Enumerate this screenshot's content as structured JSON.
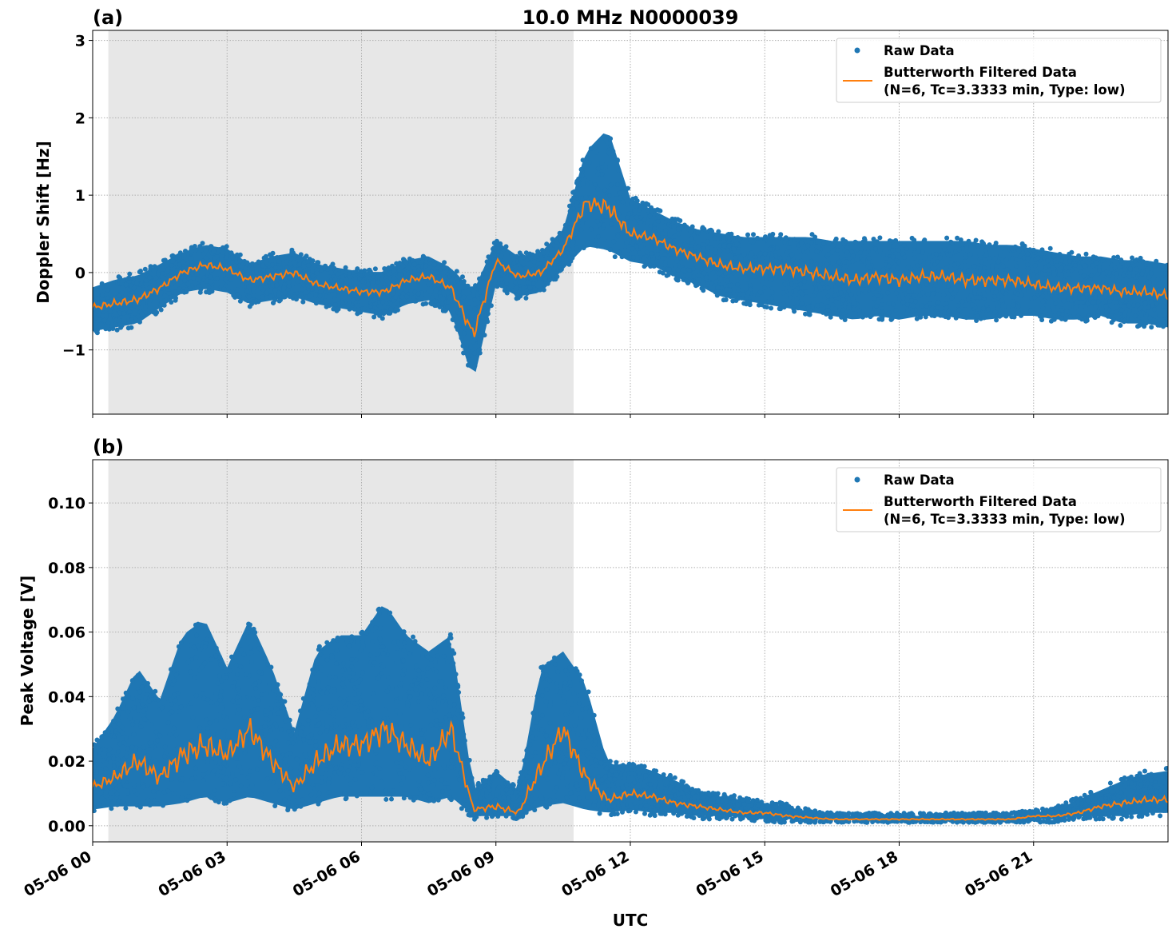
{
  "chart_data": [
    {
      "type": "scatter+line",
      "panel_label": "(a)",
      "title": "10.0 MHz N0000039",
      "xlabel": "",
      "ylabel": "Doppler Shift [Hz]",
      "xlim": [
        "05-06 00:00",
        "05-07 00:00"
      ],
      "ylim": [
        -1.83,
        3.13
      ],
      "yticks": [
        -1,
        0,
        1,
        2,
        3
      ],
      "ytick_labels": [
        "−1",
        "0",
        "1",
        "2",
        "3"
      ],
      "grid": true,
      "legend_placement": "top-right",
      "shaded_span": [
        "05-06 00:21",
        "05-06 10:44"
      ],
      "legend": [
        "Raw Data",
        "Butterworth Filtered Data",
        "(N=6, Tc=3.3333 min, Type: low)"
      ],
      "series": [
        {
          "name": "Butterworth Filtered Data (N=6, Tc=3.3333 min, Type: low)",
          "color": "#ff7f0e",
          "values": [
            -0.45,
            -0.4,
            -0.35,
            -0.2,
            0.0,
            0.1,
            0.05,
            -0.1,
            -0.05,
            0.0,
            -0.15,
            -0.2,
            -0.25,
            -0.25,
            -0.1,
            -0.05,
            -0.2,
            -0.8,
            0.15,
            -0.05,
            0.0,
            0.3,
            0.9,
            0.85,
            0.5,
            0.45,
            0.3,
            0.2,
            0.1,
            0.05,
            0.05,
            0.05,
            0.0,
            -0.05,
            -0.1,
            -0.05,
            -0.1,
            -0.05,
            -0.05,
            -0.1,
            -0.1,
            -0.1,
            -0.15,
            -0.2,
            -0.2,
            -0.2,
            -0.25,
            -0.25,
            -0.3
          ]
        },
        {
          "name": "Raw Data",
          "color": "#1f77b4",
          "range_min": [
            -0.8,
            -0.75,
            -0.7,
            -0.5,
            -0.3,
            -0.25,
            -0.3,
            -0.45,
            -0.4,
            -0.35,
            -0.45,
            -0.5,
            -0.55,
            -0.6,
            -0.45,
            -0.4,
            -0.55,
            -1.45,
            -0.2,
            -0.35,
            -0.3,
            0.0,
            0.3,
            0.25,
            0.1,
            0.05,
            -0.1,
            -0.2,
            -0.35,
            -0.4,
            -0.45,
            -0.5,
            -0.55,
            -0.6,
            -0.65,
            -0.6,
            -0.65,
            -0.6,
            -0.6,
            -0.65,
            -0.65,
            -0.6,
            -0.6,
            -0.65,
            -0.65,
            -0.6,
            -0.7,
            -0.7,
            -0.75
          ],
          "range_max": [
            -0.15,
            -0.05,
            0.0,
            0.15,
            0.3,
            0.4,
            0.35,
            0.15,
            0.25,
            0.3,
            0.15,
            0.1,
            0.05,
            0.05,
            0.2,
            0.25,
            0.1,
            -0.2,
            0.45,
            0.25,
            0.3,
            0.6,
            1.6,
            1.9,
            1.0,
            0.85,
            0.7,
            0.6,
            0.55,
            0.5,
            0.5,
            0.5,
            0.5,
            0.45,
            0.45,
            0.45,
            0.45,
            0.45,
            0.45,
            0.45,
            0.4,
            0.4,
            0.35,
            0.3,
            0.25,
            0.25,
            0.2,
            0.2,
            0.15
          ]
        }
      ]
    },
    {
      "type": "scatter+line",
      "panel_label": "(b)",
      "xlabel": "UTC",
      "ylabel": "Peak Voltage [V]",
      "xlim": [
        "05-06 00:00",
        "05-07 00:00"
      ],
      "ylim": [
        -0.005,
        0.1134
      ],
      "yticks": [
        0,
        0.02,
        0.04,
        0.06,
        0.08,
        0.1
      ],
      "ytick_labels": [
        "0.00",
        "0.02",
        "0.04",
        "0.06",
        "0.08",
        "0.10"
      ],
      "xtick_labels": [
        "05-06 00",
        "05-06 03",
        "05-06 06",
        "05-06 09",
        "05-06 12",
        "05-06 15",
        "05-06 18",
        "05-06 21"
      ],
      "grid": true,
      "legend_placement": "top-right",
      "shaded_span": [
        "05-06 00:21",
        "05-06 10:44"
      ],
      "legend": [
        "Raw Data",
        "Butterworth Filtered Data",
        "(N=6, Tc=3.3333 min, Type: low)"
      ],
      "series": [
        {
          "name": "Butterworth Filtered Data (N=6, Tc=3.3333 min, Type: low)",
          "color": "#ff7f0e",
          "values": [
            0.012,
            0.015,
            0.02,
            0.015,
            0.022,
            0.025,
            0.022,
            0.03,
            0.02,
            0.012,
            0.02,
            0.025,
            0.025,
            0.03,
            0.025,
            0.02,
            0.03,
            0.005,
            0.006,
            0.004,
            0.018,
            0.03,
            0.015,
            0.008,
            0.01,
            0.009,
            0.007,
            0.006,
            0.005,
            0.004,
            0.004,
            0.003,
            0.0025,
            0.002,
            0.002,
            0.002,
            0.002,
            0.002,
            0.002,
            0.002,
            0.002,
            0.002,
            0.003,
            0.003,
            0.004,
            0.006,
            0.007,
            0.008,
            0.008
          ]
        },
        {
          "name": "Raw Data",
          "color": "#1f77b4",
          "range_min": [
            0.004,
            0.005,
            0.005,
            0.005,
            0.006,
            0.008,
            0.006,
            0.008,
            0.006,
            0.004,
            0.006,
            0.008,
            0.008,
            0.008,
            0.008,
            0.006,
            0.008,
            0.002,
            0.002,
            0.002,
            0.005,
            0.006,
            0.004,
            0.003,
            0.004,
            0.003,
            0.003,
            0.002,
            0.002,
            0.002,
            0.001,
            0.001,
            0.001,
            0.001,
            0.001,
            0.001,
            0.001,
            0.001,
            0.001,
            0.001,
            0.001,
            0.001,
            0.001,
            0.001,
            0.002,
            0.002,
            0.002,
            0.003,
            0.003
          ],
          "range_max": [
            0.025,
            0.035,
            0.05,
            0.04,
            0.06,
            0.065,
            0.05,
            0.065,
            0.05,
            0.03,
            0.055,
            0.06,
            0.06,
            0.07,
            0.06,
            0.055,
            0.06,
            0.012,
            0.018,
            0.012,
            0.05,
            0.055,
            0.045,
            0.02,
            0.02,
            0.018,
            0.015,
            0.012,
            0.01,
            0.009,
            0.008,
            0.007,
            0.005,
            0.004,
            0.004,
            0.004,
            0.004,
            0.004,
            0.004,
            0.004,
            0.004,
            0.004,
            0.005,
            0.006,
            0.009,
            0.012,
            0.015,
            0.017,
            0.018
          ]
        }
      ]
    }
  ],
  "x": [
    "05-06 00:00",
    "05-06 00:30",
    "05-06 01:00",
    "05-06 01:30",
    "05-06 02:00",
    "05-06 02:30",
    "05-06 03:00",
    "05-06 03:30",
    "05-06 04:00",
    "05-06 04:30",
    "05-06 05:00",
    "05-06 05:30",
    "05-06 06:00",
    "05-06 06:30",
    "05-06 07:00",
    "05-06 07:30",
    "05-06 08:00",
    "05-06 08:30",
    "05-06 09:00",
    "05-06 09:30",
    "05-06 10:00",
    "05-06 10:30",
    "05-06 11:00",
    "05-06 11:30",
    "05-06 12:00",
    "05-06 12:30",
    "05-06 13:00",
    "05-06 13:30",
    "05-06 14:00",
    "05-06 14:30",
    "05-06 15:00",
    "05-06 15:30",
    "05-06 16:00",
    "05-06 16:30",
    "05-06 17:00",
    "05-06 17:30",
    "05-06 18:00",
    "05-06 18:30",
    "05-06 19:00",
    "05-06 19:30",
    "05-06 20:00",
    "05-06 20:30",
    "05-06 21:00",
    "05-06 21:30",
    "05-06 22:00",
    "05-06 22:30",
    "05-06 23:00",
    "05-06 23:30",
    "05-07 00:00"
  ]
}
